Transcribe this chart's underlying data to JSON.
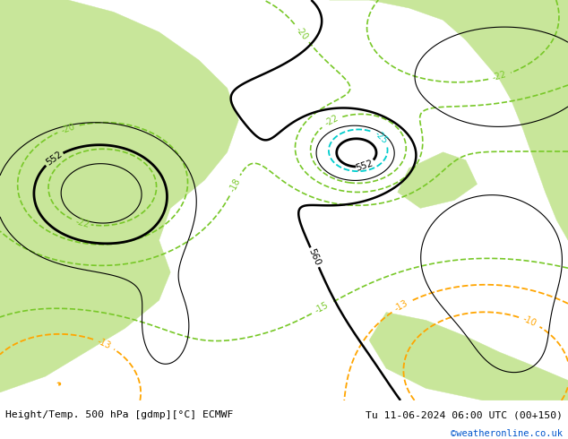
{
  "title_left": "Height/Temp. 500 hPa [gdmp][°C] ECMWF",
  "title_right": "Tu 11-06-2024 06:00 UTC (00+150)",
  "credit": "©weatheronline.co.uk",
  "bg_color": "#cccccc",
  "land_color_green": "#c8e69a",
  "height_contour_color": "#000000",
  "temp_warm_color": "#ffa500",
  "temp_cold_color": "#00cdcd",
  "temp_green_color": "#78c828",
  "bottom_bar_color": "#ffffff",
  "bottom_bar_text_color": "#000000",
  "credit_color": "#0055cc",
  "figsize": [
    6.34,
    4.9
  ],
  "dpi": 100
}
